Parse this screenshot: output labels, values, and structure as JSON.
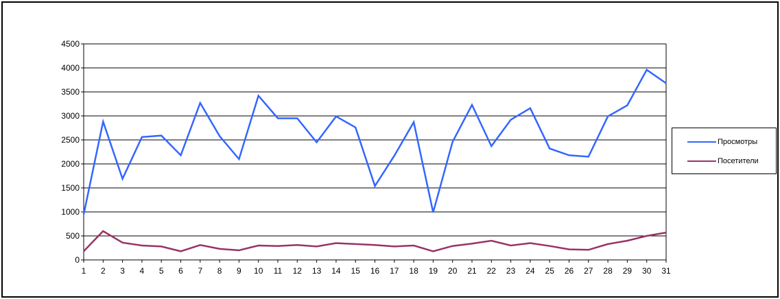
{
  "chart_data": {
    "type": "line",
    "title": "",
    "xlabel": "",
    "ylabel": "",
    "ylim": [
      0,
      4500
    ],
    "yticks": [
      0,
      500,
      1000,
      1500,
      2000,
      2500,
      3000,
      3500,
      4000,
      4500
    ],
    "grid": true,
    "legend_position": "right",
    "categories": [
      "1",
      "2",
      "3",
      "4",
      "5",
      "6",
      "7",
      "8",
      "9",
      "10",
      "11",
      "12",
      "13",
      "14",
      "15",
      "16",
      "17",
      "18",
      "19",
      "20",
      "21",
      "22",
      "23",
      "24",
      "25",
      "26",
      "27",
      "28",
      "29",
      "30",
      "31"
    ],
    "series": [
      {
        "name": "Просмотры",
        "color": "#3366ff",
        "values": [
          950,
          2880,
          1690,
          2560,
          2590,
          2180,
          3270,
          2580,
          2100,
          3420,
          2950,
          2950,
          2450,
          2990,
          2760,
          1540,
          2170,
          2870,
          990,
          2460,
          3230,
          2370,
          2920,
          3160,
          2320,
          2180,
          2150,
          2990,
          3220,
          3960,
          3680
        ]
      },
      {
        "name": "Посетители",
        "color": "#993366",
        "values": [
          180,
          600,
          360,
          300,
          280,
          180,
          310,
          230,
          200,
          300,
          290,
          310,
          280,
          350,
          330,
          310,
          280,
          300,
          180,
          290,
          340,
          400,
          300,
          350,
          290,
          220,
          210,
          330,
          400,
          500,
          570
        ]
      }
    ]
  }
}
